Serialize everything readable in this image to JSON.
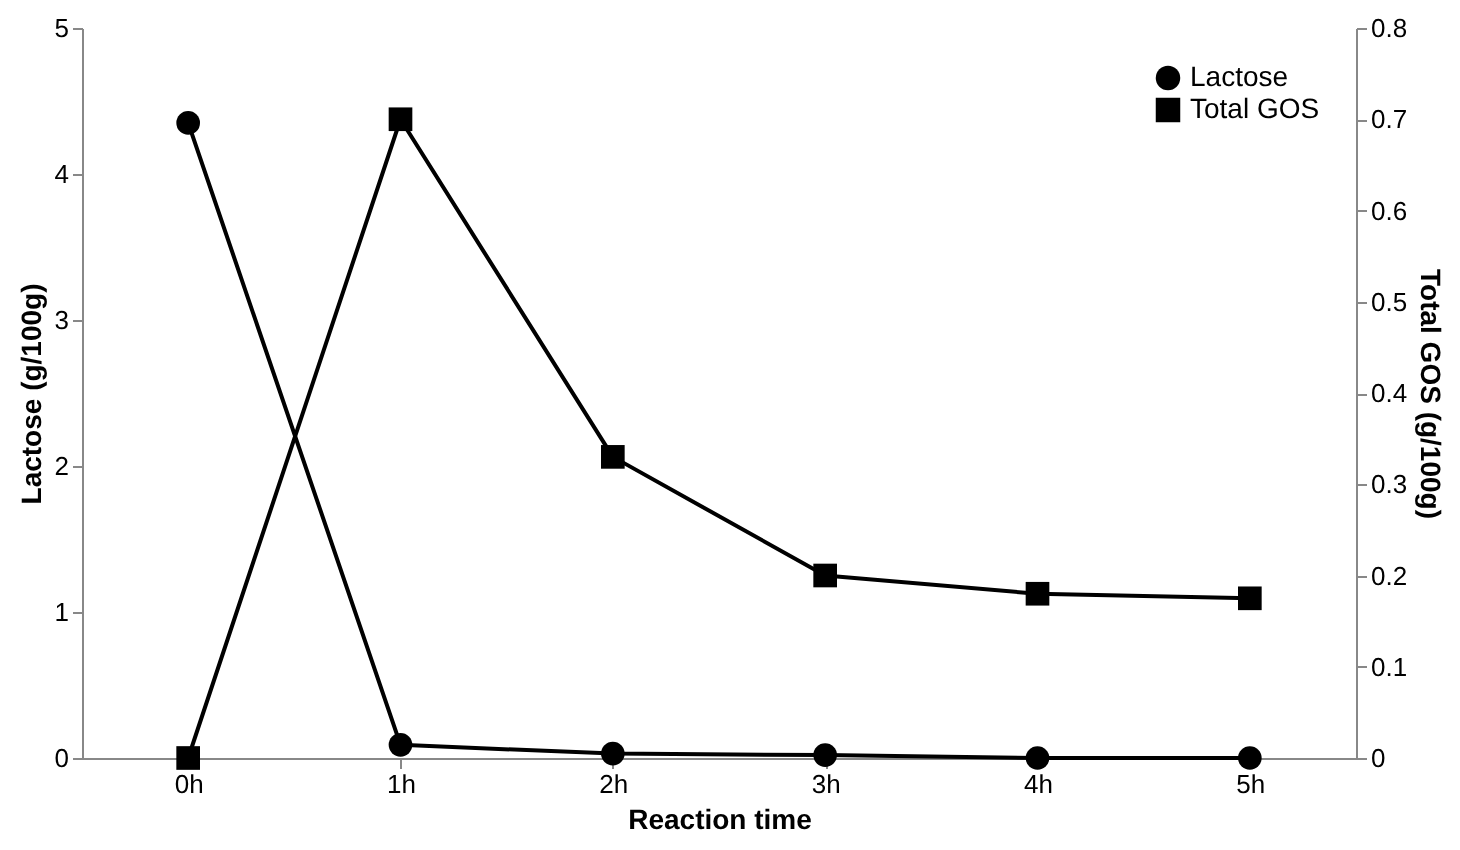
{
  "chart_data": {
    "type": "line",
    "xlabel": "Reaction time",
    "ylabel": "Lactose (g/100g)",
    "y2label": "Total GOS (g/100g)",
    "categories": [
      "0h",
      "1h",
      "2h",
      "3h",
      "4h",
      "5h"
    ],
    "series": [
      {
        "name": "Lactose",
        "color": "#000000",
        "marker": "circle",
        "values": [
          4.35,
          0.09,
          0.03,
          0.02,
          0.0,
          0.0
        ]
      },
      {
        "name": "Total GOS",
        "color": "#000000",
        "marker": "square",
        "axis": "y2",
        "values": [
          0.0,
          0.7,
          0.33,
          0.2,
          0.18,
          0.175
        ]
      }
    ],
    "ylim": [
      0,
      5
    ],
    "yticks": [
      0,
      1,
      2,
      3,
      4,
      5
    ],
    "y2lim": [
      0,
      0.8
    ],
    "y2ticks": [
      0,
      0.1,
      0.2,
      0.3,
      0.4,
      0.5,
      0.6,
      0.7,
      0.8
    ],
    "grid": false,
    "legend": "top right"
  }
}
